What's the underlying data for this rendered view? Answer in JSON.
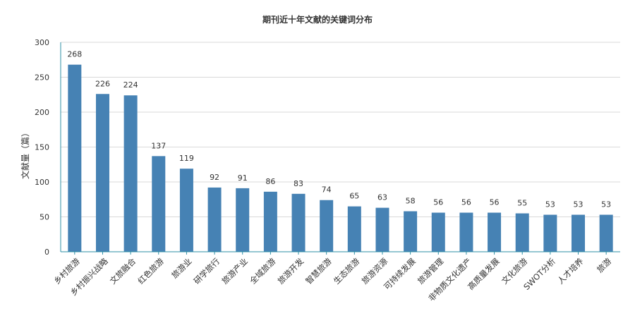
{
  "chart_data": {
    "type": "bar",
    "title": "期刊近十年文献的关键词分布",
    "ylabel": "文献量（篇）",
    "xlabel": "",
    "ylim": [
      0,
      300
    ],
    "yticks": [
      0,
      50,
      100,
      150,
      200,
      250,
      300
    ],
    "categories": [
      "乡村旅游",
      "乡村振兴战略",
      "文旅融合",
      "红色旅游",
      "旅游业",
      "研学旅行",
      "旅游产业",
      "全域旅游",
      "旅游开发",
      "智慧旅游",
      "生态旅游",
      "旅游资源",
      "可持续发展",
      "旅游管理",
      "非物质文化遗产",
      "高质量发展",
      "文化旅游",
      "SWOT分析",
      "人才培养",
      "旅游"
    ],
    "values": [
      268,
      226,
      224,
      137,
      119,
      92,
      91,
      86,
      83,
      74,
      65,
      63,
      58,
      56,
      56,
      56,
      55,
      53,
      53,
      53
    ],
    "grid": true,
    "colors": {
      "bar": "#4682b4",
      "grid": "#d9d9d9",
      "axis": "#2e8fa6"
    }
  }
}
